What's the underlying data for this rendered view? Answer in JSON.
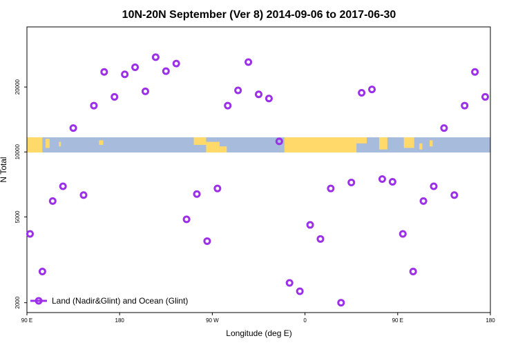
{
  "chart_data": {
    "type": "scatter",
    "title": "10N-20N September (Ver 8)   2014-09-06 to 2017-06-30",
    "xlabel": "Longitude (deg E)",
    "ylabel": "N Total",
    "x_ticks": [
      {
        "lon": -270,
        "label": "90 E"
      },
      {
        "lon": -180,
        "label": "180"
      },
      {
        "lon": -90,
        "label": "90 W"
      },
      {
        "lon": 0,
        "label": "0"
      },
      {
        "lon": 90,
        "label": "90 E"
      },
      {
        "lon": 180,
        "label": "180"
      }
    ],
    "y_ticks": [
      {
        "value": 2000,
        "label": "2000"
      },
      {
        "value": 5000,
        "label": "5000"
      },
      {
        "value": 10000,
        "label": "10000"
      },
      {
        "value": 20000,
        "label": "20000"
      }
    ],
    "xlim": [
      -270,
      180
    ],
    "ylim": [
      1800,
      38000
    ],
    "y_scale": "log",
    "grid": false,
    "legend_position": "bottom-left",
    "series": [
      {
        "name": "Land (Nadir&Glint) and Ocean (Glint)",
        "color": "#9b30e8",
        "marker": "open-circle",
        "points": [
          {
            "x": -267,
            "y": 4170
          },
          {
            "x": -255,
            "y": 2790
          },
          {
            "x": -245,
            "y": 5920
          },
          {
            "x": -235,
            "y": 6930
          },
          {
            "x": -225,
            "y": 12900
          },
          {
            "x": -215,
            "y": 6310
          },
          {
            "x": -205,
            "y": 16400
          },
          {
            "x": -195,
            "y": 23500
          },
          {
            "x": -185,
            "y": 18000
          },
          {
            "x": -175,
            "y": 22900
          },
          {
            "x": -165,
            "y": 24700
          },
          {
            "x": -155,
            "y": 19100
          },
          {
            "x": -145,
            "y": 27500
          },
          {
            "x": -135,
            "y": 23700
          },
          {
            "x": -125,
            "y": 25700
          },
          {
            "x": -115,
            "y": 4870
          },
          {
            "x": -105,
            "y": 6380
          },
          {
            "x": -95,
            "y": 3860
          },
          {
            "x": -85,
            "y": 6770
          },
          {
            "x": -75,
            "y": 16400
          },
          {
            "x": -65,
            "y": 19300
          },
          {
            "x": -55,
            "y": 26100
          },
          {
            "x": -45,
            "y": 18500
          },
          {
            "x": -35,
            "y": 17700
          },
          {
            "x": -25,
            "y": 11200
          },
          {
            "x": -15,
            "y": 2470
          },
          {
            "x": -5,
            "y": 2260
          },
          {
            "x": 5,
            "y": 4590
          },
          {
            "x": 15,
            "y": 3950
          },
          {
            "x": 25,
            "y": 6770
          },
          {
            "x": 35,
            "y": 2000
          },
          {
            "x": 45,
            "y": 7220
          },
          {
            "x": 55,
            "y": 18800
          },
          {
            "x": 65,
            "y": 19500
          },
          {
            "x": 75,
            "y": 7490
          },
          {
            "x": 85,
            "y": 7270
          },
          {
            "x": 95,
            "y": 4170
          },
          {
            "x": 105,
            "y": 2790
          },
          {
            "x": 115,
            "y": 5920
          },
          {
            "x": 125,
            "y": 6930
          },
          {
            "x": 135,
            "y": 12900
          },
          {
            "x": 145,
            "y": 6310
          },
          {
            "x": 155,
            "y": 16400
          },
          {
            "x": 165,
            "y": 23500
          },
          {
            "x": 175,
            "y": 18000
          }
        ]
      }
    ],
    "band_colors": {
      "ocean": "#a7bcdc",
      "land": "#ffd96a"
    }
  }
}
